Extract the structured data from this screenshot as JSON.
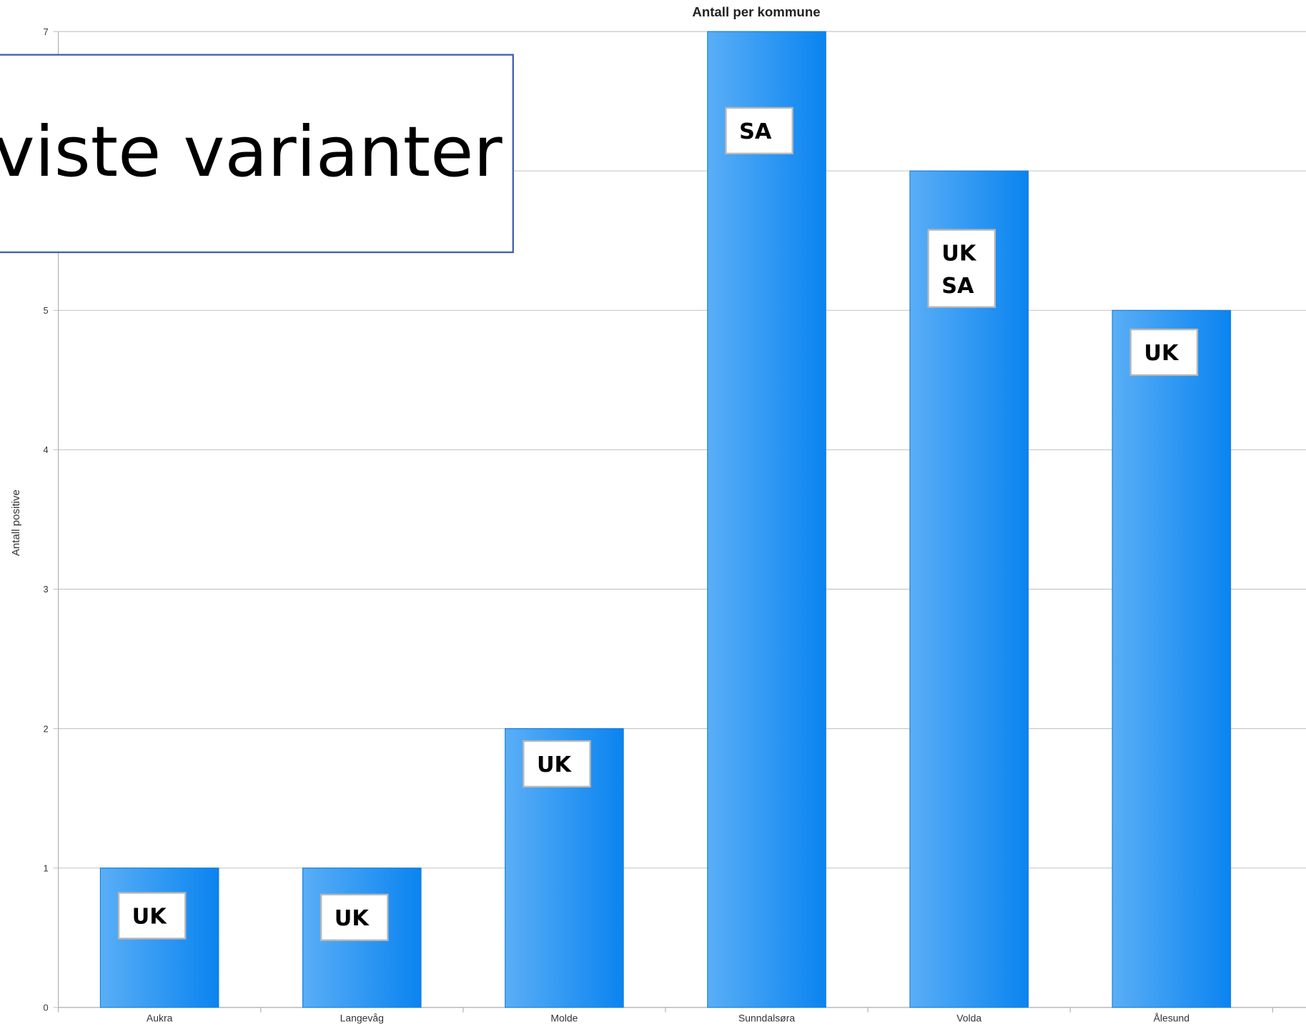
{
  "chart_data": {
    "type": "bar",
    "title": "Antall per kommune",
    "ylabel": "Antall positive",
    "categories": [
      "Aukra",
      "Langevåg",
      "Molde",
      "Sunndalsøra",
      "Volda",
      "Ålesund"
    ],
    "values": [
      1,
      1,
      2,
      7,
      6,
      5
    ],
    "bar_labels": [
      [
        "UK"
      ],
      [
        "UK"
      ],
      [
        "UK"
      ],
      [
        "SA"
      ],
      [
        "UK",
        "SA"
      ],
      [
        "UK"
      ]
    ],
    "color": "#0a84f0",
    "ylim": [
      0,
      7
    ],
    "yticks": [
      0,
      1,
      2,
      3,
      4,
      5,
      6,
      7
    ],
    "grid": true,
    "overlay_text": "viste varianter"
  }
}
